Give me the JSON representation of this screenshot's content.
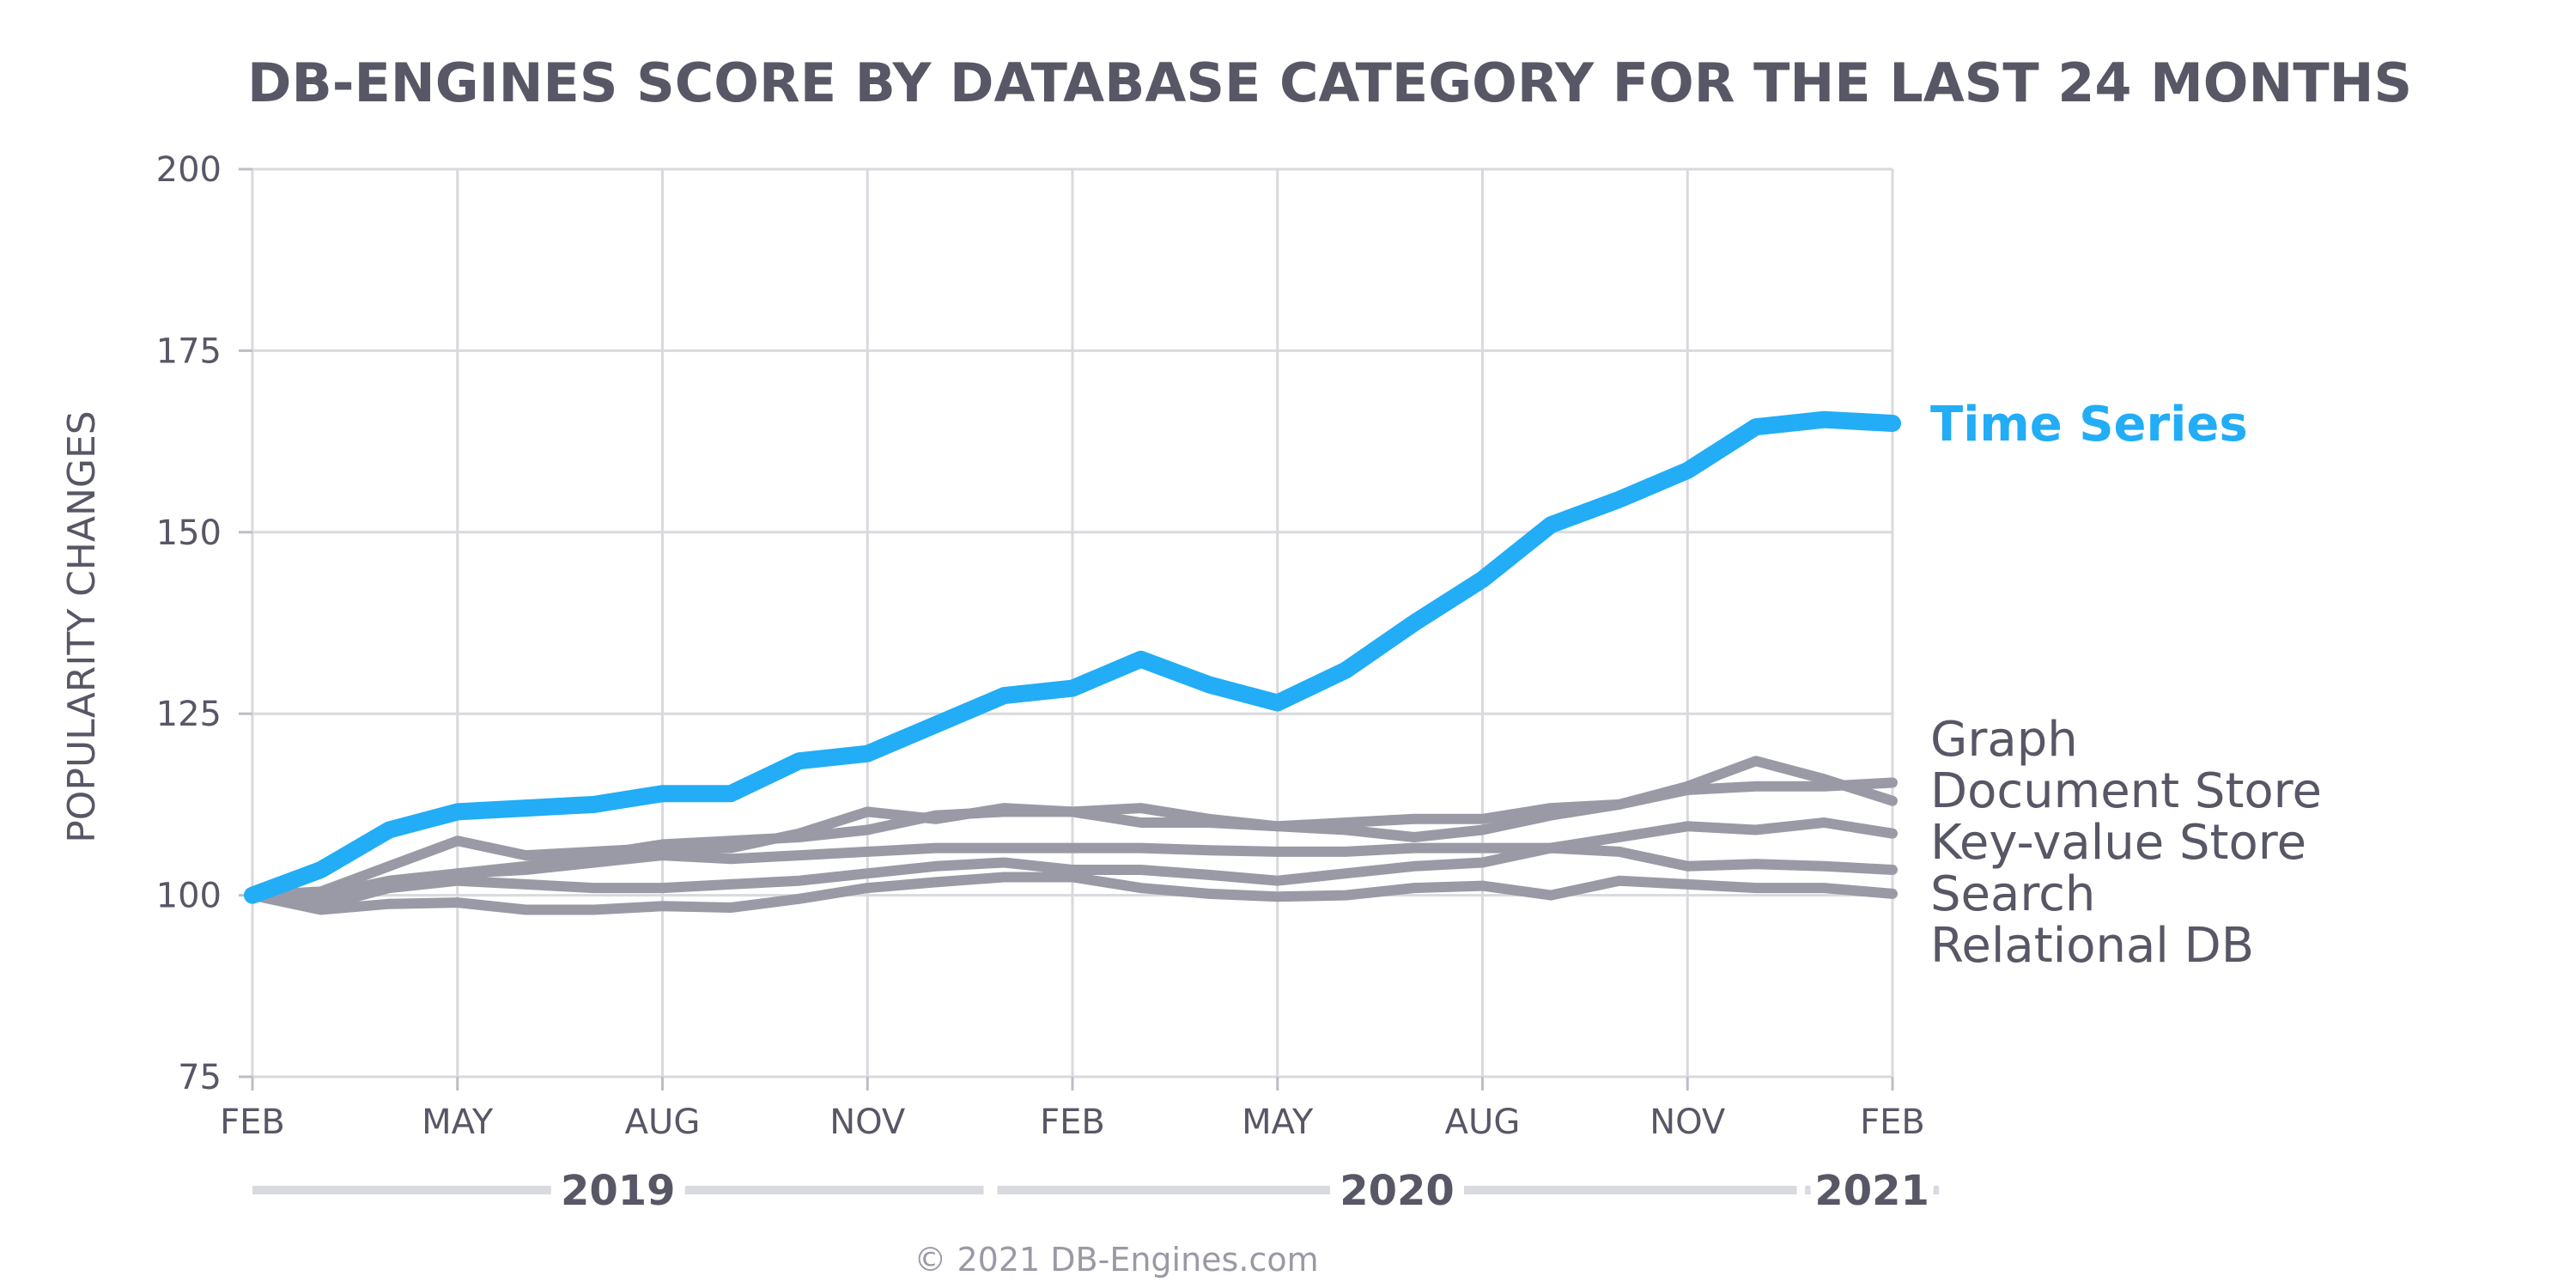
{
  "chart_data": {
    "type": "line",
    "title": "DB-ENGINES SCORE BY DATABASE CATEGORY FOR THE LAST 24 MONTHS",
    "ylabel": "POPULARITY CHANGES",
    "xlabel": "",
    "ylim": [
      75,
      200
    ],
    "yticks": [
      75,
      100,
      125,
      150,
      175,
      200
    ],
    "x": [
      "2019-02",
      "2019-03",
      "2019-04",
      "2019-05",
      "2019-06",
      "2019-07",
      "2019-08",
      "2019-09",
      "2019-10",
      "2019-11",
      "2019-12",
      "2020-01",
      "2020-02",
      "2020-03",
      "2020-04",
      "2020-05",
      "2020-06",
      "2020-07",
      "2020-08",
      "2020-09",
      "2020-10",
      "2020-11",
      "2020-12",
      "2021-01",
      "2021-02"
    ],
    "xtick_labels": [
      "FEB",
      "MAY",
      "AUG",
      "NOV",
      "FEB",
      "MAY",
      "AUG",
      "NOV",
      "FEB"
    ],
    "xtick_index": [
      0,
      3,
      6,
      9,
      12,
      15,
      18,
      21,
      24
    ],
    "years": [
      {
        "label": "2019",
        "start": 0,
        "end": 10.7
      },
      {
        "label": "2020",
        "start": 10.9,
        "end": 22.6
      },
      {
        "label": "2021",
        "start": 22.8,
        "end": 24.6
      }
    ],
    "grid": true,
    "legend": "right end labels",
    "series": [
      {
        "name": "Search",
        "color": "#9a9aa6",
        "highlight": false,
        "values": [
          100,
          98.5,
          101,
          102,
          101.5,
          101,
          101,
          101.5,
          102,
          103,
          104,
          104.5,
          103.5,
          103.5,
          102.8,
          102,
          103,
          104,
          104.5,
          106.5,
          106,
          104,
          104.3,
          104,
          103.5
        ]
      },
      {
        "name": "Relational DB",
        "color": "#9a9aa6",
        "highlight": false,
        "values": [
          100,
          98,
          98.8,
          99,
          98,
          98,
          98.5,
          98.3,
          99.5,
          101,
          101.8,
          102.5,
          102.5,
          101,
          100.2,
          99.8,
          100,
          101,
          101.3,
          100,
          102,
          101.5,
          101,
          101,
          100.2
        ]
      },
      {
        "name": "Key-value Store",
        "color": "#9a9aa6",
        "highlight": false,
        "values": [
          100,
          99.5,
          101,
          103,
          103.5,
          104.5,
          105.5,
          105,
          105.5,
          106,
          106.5,
          106.5,
          106.5,
          106.5,
          106.2,
          106,
          106,
          106.5,
          106.5,
          106.5,
          108,
          109.5,
          109,
          110,
          108.5
        ]
      },
      {
        "name": "Document Store",
        "color": "#9a9aa6",
        "highlight": false,
        "values": [
          100,
          100,
          102,
          103,
          104,
          105.5,
          107,
          107.5,
          108,
          109,
          111,
          111.5,
          111.5,
          112,
          110.5,
          109.5,
          109,
          108,
          109,
          111,
          112.5,
          114.5,
          115,
          115,
          115.5
        ]
      },
      {
        "name": "Graph",
        "color": "#9a9aa6",
        "highlight": false,
        "values": [
          100,
          100.5,
          104,
          107.5,
          105.5,
          106,
          106.5,
          106.5,
          108.5,
          111.5,
          110.5,
          112,
          111.5,
          110,
          110,
          109.5,
          110,
          110.5,
          110.5,
          112,
          112.5,
          115,
          118.5,
          116,
          113
        ]
      },
      {
        "name": "Time Series",
        "color": "#22adf6",
        "highlight": true,
        "values": [
          100,
          103.5,
          109,
          111.5,
          112,
          112.5,
          114,
          114,
          118.5,
          119.5,
          123.5,
          127.5,
          128.5,
          132.5,
          129,
          126.5,
          131,
          137.5,
          143.5,
          151,
          154.5,
          158.5,
          164.5,
          165.5,
          165
        ]
      }
    ],
    "end_labels": [
      {
        "name": "Time Series",
        "color": "#22adf6",
        "highlight": true
      },
      {
        "name": "Graph",
        "color": "#575766",
        "highlight": false
      },
      {
        "name": "Document Store",
        "color": "#575766",
        "highlight": false
      },
      {
        "name": "Key-value Store",
        "color": "#575766",
        "highlight": false
      },
      {
        "name": "Search",
        "color": "#575766",
        "highlight": false
      },
      {
        "name": "Relational DB",
        "color": "#575766",
        "highlight": false
      }
    ],
    "credit": "© 2021 DB-Engines.com"
  }
}
